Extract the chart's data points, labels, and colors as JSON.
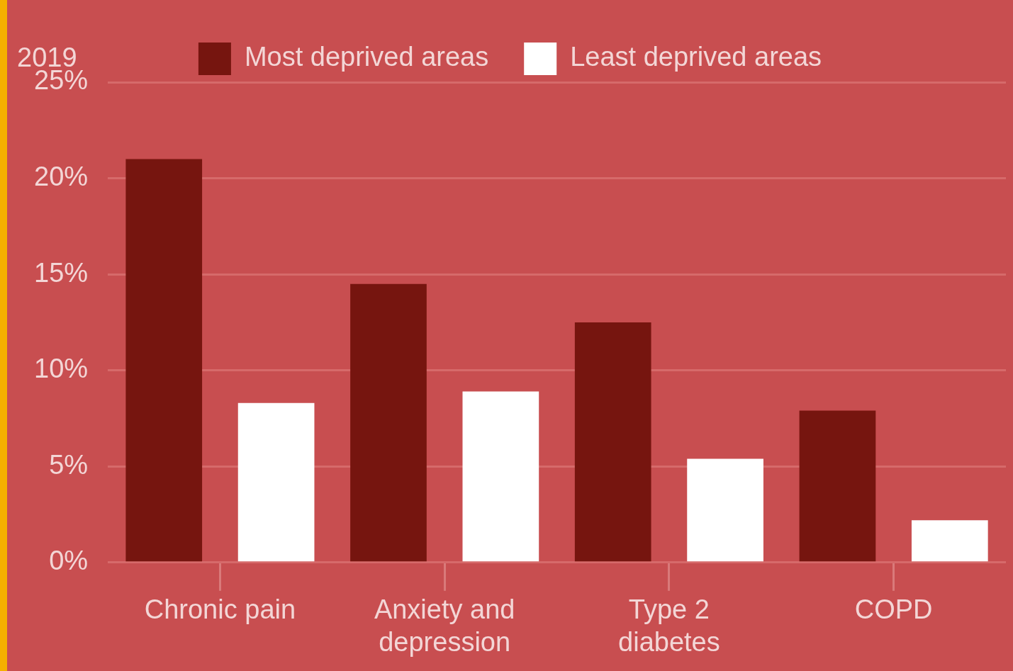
{
  "chart_data": {
    "type": "bar",
    "ylabel": "2019",
    "categories": [
      "Chronic pain",
      "Anxiety and depression",
      "Type 2 diabetes",
      "COPD"
    ],
    "series": [
      {
        "name": "Most deprived areas",
        "color": "#76150f",
        "values": [
          21,
          14.5,
          12.5,
          7.9
        ]
      },
      {
        "name": "Least deprived areas",
        "color": "#ffffff",
        "values": [
          8.3,
          8.9,
          5.4,
          2.2
        ]
      }
    ],
    "ylim": [
      0,
      25
    ],
    "yticks": [
      {
        "value": 0,
        "label": "0%"
      },
      {
        "value": 5,
        "label": "5%"
      },
      {
        "value": 10,
        "label": "10%"
      },
      {
        "value": 15,
        "label": "15%"
      },
      {
        "value": 20,
        "label": "20%"
      },
      {
        "value": 25,
        "label": "25%"
      }
    ],
    "grid": "y",
    "legend": "top"
  }
}
